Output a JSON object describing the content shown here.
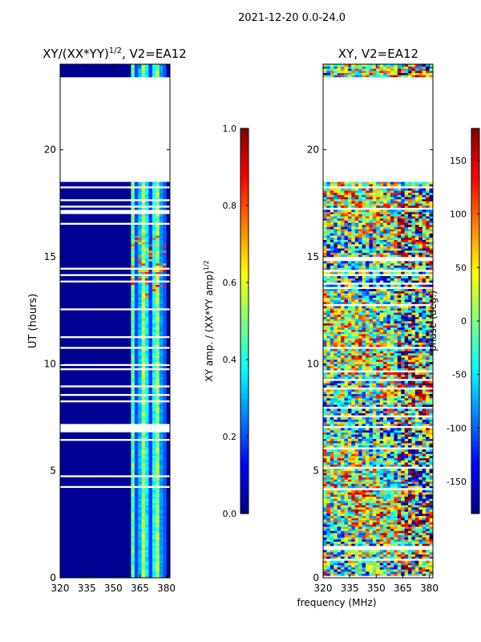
{
  "suptitle": "2021-12-20 0.0-24.0",
  "chart_data": [
    {
      "type": "heatmap",
      "title_prefix": "XY/(XX*YY)",
      "title_exp": "1/2",
      "title_suffix": ", V2=EA12",
      "xlabel": "",
      "ylabel": "UT (hours)",
      "xlim": [
        320,
        382
      ],
      "ylim": [
        0,
        24
      ],
      "x_ticks": [
        320,
        335,
        350,
        365,
        380
      ],
      "y_ticks": [
        0,
        5,
        10,
        15,
        20
      ],
      "value_range": [
        0.0,
        1.0
      ],
      "colormap": "jet",
      "colorbar": {
        "label_prefix": "XY amp. / (XX*YY amp)",
        "label_exp": "1/2",
        "ticks": [
          "0.0",
          "0.2",
          "0.4",
          "0.6",
          "0.8",
          "1.0"
        ],
        "tick_values": [
          0.0,
          0.2,
          0.4,
          0.6,
          0.8,
          1.0
        ]
      },
      "gap_hours": [
        [
          18.5,
          23.4
        ]
      ],
      "active_band_mhz": [
        360,
        380
      ],
      "background_value": 0.02
    },
    {
      "type": "heatmap",
      "title": "XY, V2=EA12",
      "xlabel": "frequency (MHz)",
      "ylabel": "",
      "xlim": [
        320,
        382
      ],
      "ylim": [
        0,
        24
      ],
      "x_ticks": [
        320,
        335,
        350,
        365,
        380
      ],
      "y_ticks": [
        0,
        5,
        10,
        15,
        20
      ],
      "value_range": [
        -180,
        180
      ],
      "colormap": "jet",
      "colorbar": {
        "label": "phase (deg.)",
        "ticks": [
          "-150",
          "-100",
          "-50",
          "0",
          "50",
          "100",
          "150"
        ],
        "tick_values": [
          -150,
          -100,
          -50,
          0,
          50,
          100,
          150
        ]
      },
      "gap_hours": [
        [
          18.5,
          23.4
        ]
      ]
    }
  ]
}
